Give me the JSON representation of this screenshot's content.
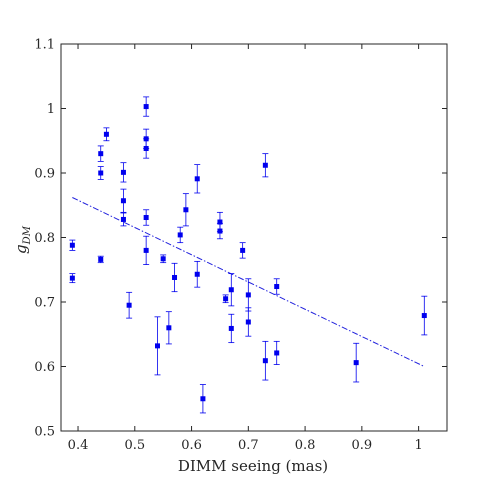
{
  "chart_data": {
    "type": "scatter",
    "title": "",
    "xlabel": "DIMM seeing (mas)",
    "ylabel_main": "g",
    "ylabel_sub": "DM",
    "xlim": [
      0.37,
      1.05
    ],
    "ylim": [
      0.5,
      1.1
    ],
    "xticks": [
      "0.4",
      "0.5",
      "0.6",
      "0.7",
      "0.8",
      "0.9",
      "1"
    ],
    "yticks": [
      "0.5",
      "0.6",
      "0.7",
      "0.8",
      "0.9",
      "1",
      "1.1"
    ],
    "xtick_values": [
      0.4,
      0.5,
      0.6,
      0.7,
      0.8,
      0.9,
      1.0
    ],
    "ytick_values": [
      0.5,
      0.6,
      0.7,
      0.8,
      0.9,
      1.0,
      1.1
    ],
    "grid": false,
    "box": true,
    "colors": {
      "points": "#0000ee",
      "fit_line": "#2222dd",
      "axes": "#262626"
    },
    "points": [
      {
        "x": 0.39,
        "y": 0.788,
        "err": 0.008
      },
      {
        "x": 0.39,
        "y": 0.737,
        "err": 0.007
      },
      {
        "x": 0.44,
        "y": 0.93,
        "err": 0.012
      },
      {
        "x": 0.44,
        "y": 0.9,
        "err": 0.01
      },
      {
        "x": 0.44,
        "y": 0.766,
        "err": 0.005
      },
      {
        "x": 0.45,
        "y": 0.96,
        "err": 0.01
      },
      {
        "x": 0.48,
        "y": 0.901,
        "err": 0.015
      },
      {
        "x": 0.48,
        "y": 0.857,
        "err": 0.018
      },
      {
        "x": 0.48,
        "y": 0.828,
        "err": 0.01
      },
      {
        "x": 0.49,
        "y": 0.695,
        "err": 0.02
      },
      {
        "x": 0.52,
        "y": 1.003,
        "err": 0.015
      },
      {
        "x": 0.52,
        "y": 0.953,
        "err": 0.015
      },
      {
        "x": 0.52,
        "y": 0.938,
        "err": 0.015
      },
      {
        "x": 0.52,
        "y": 0.831,
        "err": 0.012
      },
      {
        "x": 0.52,
        "y": 0.78,
        "err": 0.022
      },
      {
        "x": 0.54,
        "y": 0.632,
        "err": 0.045
      },
      {
        "x": 0.55,
        "y": 0.767,
        "err": 0.006
      },
      {
        "x": 0.56,
        "y": 0.66,
        "err": 0.025
      },
      {
        "x": 0.57,
        "y": 0.738,
        "err": 0.022
      },
      {
        "x": 0.58,
        "y": 0.804,
        "err": 0.012
      },
      {
        "x": 0.59,
        "y": 0.843,
        "err": 0.025
      },
      {
        "x": 0.61,
        "y": 0.891,
        "err": 0.022
      },
      {
        "x": 0.61,
        "y": 0.743,
        "err": 0.02
      },
      {
        "x": 0.62,
        "y": 0.55,
        "err": 0.022
      },
      {
        "x": 0.65,
        "y": 0.824,
        "err": 0.015
      },
      {
        "x": 0.65,
        "y": 0.81,
        "err": 0.012
      },
      {
        "x": 0.66,
        "y": 0.705,
        "err": 0.006
      },
      {
        "x": 0.67,
        "y": 0.719,
        "err": 0.025
      },
      {
        "x": 0.67,
        "y": 0.659,
        "err": 0.022
      },
      {
        "x": 0.69,
        "y": 0.78,
        "err": 0.012
      },
      {
        "x": 0.7,
        "y": 0.711,
        "err": 0.025
      },
      {
        "x": 0.7,
        "y": 0.669,
        "err": 0.022
      },
      {
        "x": 0.73,
        "y": 0.912,
        "err": 0.018
      },
      {
        "x": 0.73,
        "y": 0.609,
        "err": 0.03
      },
      {
        "x": 0.75,
        "y": 0.724,
        "err": 0.012
      },
      {
        "x": 0.75,
        "y": 0.621,
        "err": 0.018
      },
      {
        "x": 0.89,
        "y": 0.606,
        "err": 0.03
      },
      {
        "x": 1.01,
        "y": 0.679,
        "err": 0.03
      }
    ],
    "fit_line": {
      "x": [
        0.39,
        1.01
      ],
      "y": [
        0.862,
        0.6
      ]
    }
  }
}
